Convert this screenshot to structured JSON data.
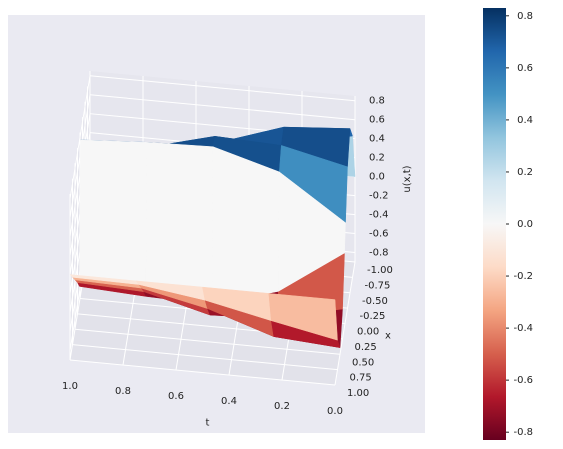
{
  "chart_data": {
    "type": "surface3d",
    "x_label": "x",
    "t_label": "t",
    "z_label": "u(x,t)",
    "x": [
      -1,
      -0.75,
      -0.5,
      -0.25,
      -0.05,
      0.05,
      0.25,
      0.5,
      0.75,
      1
    ],
    "t": [
      0,
      0.25,
      0.5,
      0.75,
      1
    ],
    "u": [
      [
        0,
        0.59,
        0.83,
        0.59,
        0.13,
        -0.13,
        -0.59,
        -0.83,
        -0.59,
        0
      ],
      [
        0,
        0.45,
        0.78,
        0.75,
        0.6,
        -0.6,
        -0.75,
        -0.78,
        -0.45,
        0
      ],
      [
        0,
        0.3,
        0.55,
        0.78,
        0.8,
        -0.8,
        -0.78,
        -0.55,
        -0.3,
        0
      ],
      [
        0,
        0.2,
        0.4,
        0.6,
        0.78,
        -0.78,
        -0.6,
        -0.4,
        -0.2,
        0
      ],
      [
        0,
        0.19,
        0.38,
        0.57,
        0.74,
        -0.74,
        -0.57,
        -0.38,
        -0.19,
        0
      ]
    ],
    "xlim": [
      -1,
      1
    ],
    "xticks": [
      {
        "value": -1,
        "label": "-1.00"
      },
      -0.75,
      {
        "value": -0.5,
        "label": "-0.50"
      },
      -0.25,
      {
        "value": 0,
        "label": "0.00"
      },
      0.25,
      {
        "value": 0.5,
        "label": "0.50"
      },
      0.75,
      {
        "value": 1,
        "label": "1.00"
      }
    ],
    "tlim": [
      0,
      1
    ],
    "tticks": [
      {
        "value": 0,
        "label": "0.0"
      },
      0.2,
      0.4,
      0.6,
      0.8,
      {
        "value": 1,
        "label": "1.0"
      }
    ],
    "zlim": [
      -0.9,
      0.85
    ],
    "zticks": [
      -0.8,
      -0.6,
      -0.4,
      -0.2,
      {
        "value": 0,
        "label": "0.0"
      },
      0.2,
      0.4,
      0.6,
      0.8
    ],
    "colormap": [
      "#67001f",
      "#b2182b",
      "#d6604d",
      "#f4a582",
      "#fddbc7",
      "#f7f7f7",
      "#d1e5f0",
      "#92c5de",
      "#4393c3",
      "#2166ac",
      "#053061"
    ],
    "clim": [
      -0.83,
      0.83
    ],
    "cticks": [
      -0.8,
      -0.6,
      -0.4,
      -0.2,
      {
        "value": 0,
        "label": "0.0"
      },
      0.2,
      0.4,
      0.6,
      0.8
    ],
    "grid": true
  }
}
